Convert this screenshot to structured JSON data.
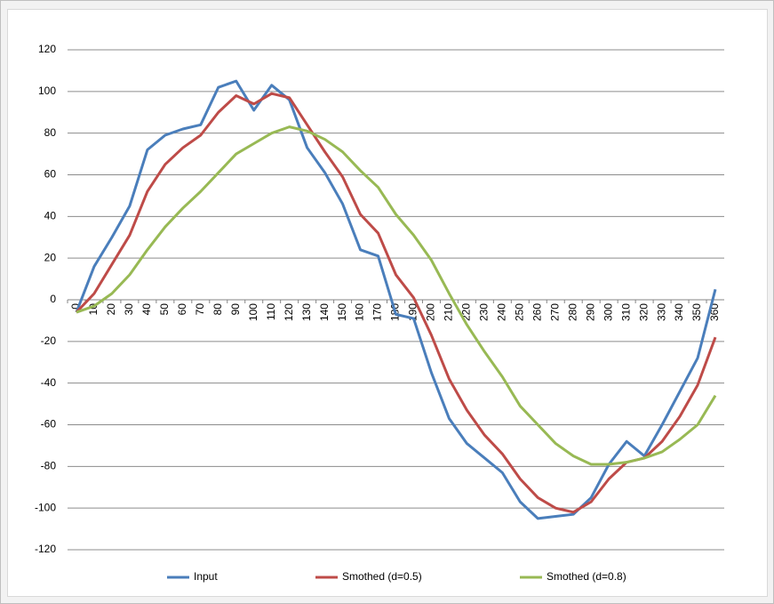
{
  "chart_data": {
    "type": "line",
    "categories": [
      "0",
      "10",
      "20",
      "30",
      "40",
      "50",
      "60",
      "70",
      "80",
      "90",
      "100",
      "110",
      "120",
      "130",
      "140",
      "150",
      "160",
      "170",
      "180",
      "190",
      "200",
      "210",
      "220",
      "230",
      "240",
      "250",
      "260",
      "270",
      "280",
      "290",
      "300",
      "310",
      "320",
      "330",
      "340",
      "350",
      "360"
    ],
    "series": [
      {
        "name": "Input",
        "color": "#4a7ebb",
        "values": [
          -6,
          16,
          30,
          45,
          72,
          79,
          82,
          84,
          102,
          105,
          91,
          103,
          96,
          73,
          61,
          46,
          24,
          21,
          -7,
          -9,
          -35,
          -57,
          -69,
          -76,
          -83,
          -97,
          -105,
          -104,
          -103,
          -95,
          -79,
          -68,
          -75,
          -60,
          -44,
          -28,
          5
        ]
      },
      {
        "name": "Smothed (d=0.5)",
        "color": "#be4b48",
        "values": [
          -6,
          3,
          17,
          31,
          52,
          65,
          73,
          79,
          90,
          98,
          94,
          99,
          97,
          84,
          71,
          59,
          41,
          32,
          12,
          1,
          -17,
          -38,
          -53,
          -65,
          -74,
          -86,
          -95,
          -100,
          -102,
          -97,
          -86,
          -78,
          -76,
          -68,
          -56,
          -41,
          -18
        ]
      },
      {
        "name": "Smothed (d=0.8)",
        "color": "#98b954",
        "values": [
          -6,
          -3,
          3,
          12,
          24,
          35,
          44,
          52,
          61,
          70,
          75,
          80,
          83,
          81,
          77,
          71,
          62,
          54,
          41,
          31,
          19,
          3,
          -12,
          -25,
          -37,
          -51,
          -60,
          -69,
          -75,
          -79,
          -79,
          -78,
          -76,
          -73,
          -67,
          -60,
          -46
        ]
      }
    ],
    "ylim": [
      -120,
      120
    ],
    "yticks": [
      -120,
      -100,
      -80,
      -60,
      -40,
      -20,
      0,
      20,
      40,
      60,
      80,
      100,
      120
    ],
    "grid": true,
    "legend": "bottom"
  }
}
